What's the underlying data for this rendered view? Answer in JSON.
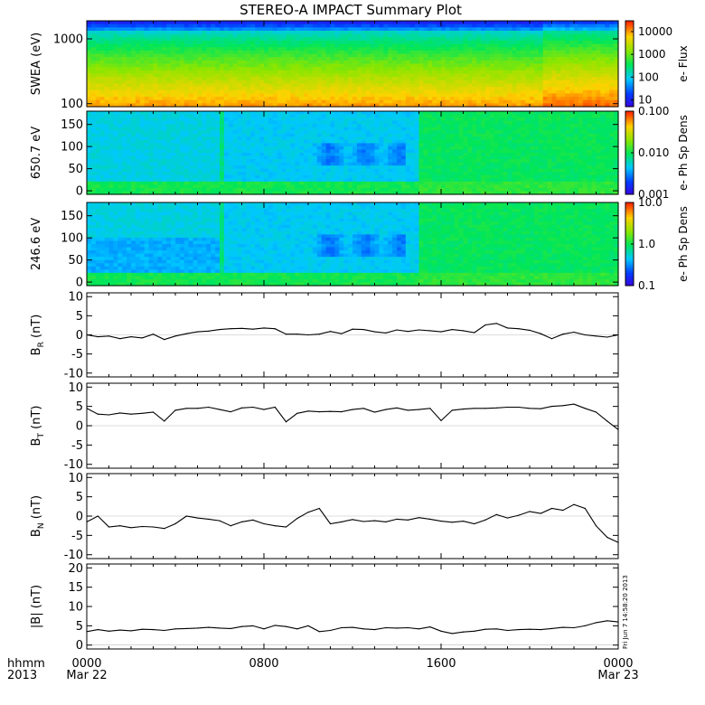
{
  "figure_title": "STEREO-A IMPACT Summary Plot",
  "timestamp_note": "Fri Jun  7 14:58:20 2013",
  "time_axis": {
    "corner_label": [
      "hhmm",
      "2013"
    ],
    "ticks": [
      {
        "hours": 0,
        "label": "0000",
        "date": "Mar 22"
      },
      {
        "hours": 8,
        "label": "0800",
        "date": ""
      },
      {
        "hours": 16,
        "label": "1600",
        "date": ""
      },
      {
        "hours": 24,
        "label": "0000",
        "date": "Mar 23"
      }
    ],
    "range_hours": [
      0,
      24
    ]
  },
  "chart_data": [
    {
      "type": "heatmap",
      "ylabel": "SWEA (eV)",
      "y_scale": "log",
      "ylim": [
        90,
        1900
      ],
      "y_ticks": [
        {
          "v": 1000,
          "label": "1000"
        },
        {
          "v": 100,
          "label": "100"
        }
      ],
      "colorbar": {
        "label": "e- Flux",
        "scale": "log",
        "range": [
          5,
          30000
        ],
        "ticks": [
          {
            "v": 10000,
            "label": "10000"
          },
          {
            "v": 1000,
            "label": "1000"
          },
          {
            "v": 100,
            "label": "100"
          },
          {
            "v": 10,
            "label": "10"
          }
        ]
      },
      "colormap": "rainbow"
    },
    {
      "type": "heatmap",
      "ylabel": "650.7 eV",
      "ylim": [
        -8,
        180
      ],
      "y_ticks": [
        {
          "v": 150,
          "label": "150"
        },
        {
          "v": 100,
          "label": "100"
        },
        {
          "v": 50,
          "label": "50"
        },
        {
          "v": 0,
          "label": "0"
        }
      ],
      "colorbar": {
        "label": "e- Ph Sp Dens",
        "scale": "log",
        "range": [
          0.001,
          0.1
        ],
        "ticks": [
          {
            "v": 0.1,
            "label": "0.100"
          },
          {
            "v": 0.01,
            "label": "0.010"
          },
          {
            "v": 0.001,
            "label": "0.001"
          }
        ]
      },
      "colormap": "rainbow"
    },
    {
      "type": "heatmap",
      "ylabel": "246.6 eV",
      "ylim": [
        -8,
        180
      ],
      "y_ticks": [
        {
          "v": 150,
          "label": "150"
        },
        {
          "v": 100,
          "label": "100"
        },
        {
          "v": 50,
          "label": "50"
        },
        {
          "v": 0,
          "label": "0"
        }
      ],
      "colorbar": {
        "label": "e- Ph Sp Dens",
        "scale": "log",
        "range": [
          0.1,
          10
        ],
        "ticks": [
          {
            "v": 10,
            "label": "10.0"
          },
          {
            "v": 1,
            "label": "1.0"
          },
          {
            "v": 0.1,
            "label": "0.1"
          }
        ]
      },
      "colormap": "rainbow"
    },
    {
      "type": "line",
      "ylabel": "B",
      "ylabel_sub": "R",
      "ylabel_unit": "(nT)",
      "ylim": [
        -11,
        11
      ],
      "y_ticks": [
        10,
        5,
        0,
        -5,
        -10
      ],
      "x": [
        0,
        0.5,
        1,
        1.5,
        2,
        2.5,
        3,
        3.5,
        4,
        4.5,
        5,
        5.5,
        6,
        6.5,
        7,
        7.5,
        8,
        8.5,
        9,
        9.5,
        10,
        10.5,
        11,
        11.5,
        12,
        12.5,
        13,
        13.5,
        14,
        14.5,
        15,
        15.5,
        16,
        16.5,
        17,
        17.5,
        18,
        18.5,
        19,
        19.5,
        20,
        20.5,
        21,
        21.5,
        22,
        22.5,
        23,
        23.5,
        24
      ],
      "y": [
        0,
        -0.5,
        -0.3,
        -1,
        -0.5,
        -0.8,
        0.2,
        -1.2,
        -0.3,
        0.3,
        0.8,
        1,
        1.4,
        1.6,
        1.7,
        1.5,
        1.8,
        1.6,
        0.2,
        0.2,
        0,
        0.2,
        0.9,
        0.3,
        1.5,
        1.4,
        0.8,
        0.5,
        1.3,
        0.9,
        1.3,
        1.1,
        0.8,
        1.4,
        1.1,
        0.6,
        2.6,
        3.0,
        1.8,
        1.6,
        1.2,
        0.3,
        -1.0,
        0.2,
        0.7,
        0,
        -0.3,
        -0.6,
        0
      ]
    },
    {
      "type": "line",
      "ylabel": "B",
      "ylabel_sub": "T",
      "ylabel_unit": "(nT)",
      "ylim": [
        -11,
        11
      ],
      "y_ticks": [
        10,
        5,
        0,
        -5,
        -10
      ],
      "x": [
        0,
        0.5,
        1,
        1.5,
        2,
        2.5,
        3,
        3.5,
        4,
        4.5,
        5,
        5.5,
        6,
        6.5,
        7,
        7.5,
        8,
        8.5,
        9,
        9.5,
        10,
        10.5,
        11,
        11.5,
        12,
        12.5,
        13,
        13.5,
        14,
        14.5,
        15,
        15.5,
        16,
        16.5,
        17,
        17.5,
        18,
        18.5,
        19,
        19.5,
        20,
        20.5,
        21,
        21.5,
        22,
        22.5,
        23,
        23.5,
        24
      ],
      "y": [
        4.5,
        3,
        2.8,
        3.3,
        3,
        3.2,
        3.5,
        1.2,
        4,
        4.5,
        4.5,
        4.8,
        4.2,
        3.6,
        4.6,
        4.8,
        4.2,
        4.8,
        1.0,
        3.2,
        3.8,
        3.6,
        3.7,
        3.6,
        4.2,
        4.5,
        3.5,
        4.2,
        4.6,
        4.0,
        4.2,
        4.5,
        1.3,
        4.0,
        4.3,
        4.5,
        4.5,
        4.6,
        4.8,
        4.8,
        4.5,
        4.4,
        5.0,
        5.2,
        5.6,
        4.5,
        3.5,
        1.2,
        -1.0
      ]
    },
    {
      "type": "line",
      "ylabel": "B",
      "ylabel_sub": "N",
      "ylabel_unit": "(nT)",
      "ylim": [
        -11,
        11
      ],
      "y_ticks": [
        10,
        5,
        0,
        -5,
        -10
      ],
      "x": [
        0,
        0.5,
        1,
        1.5,
        2,
        2.5,
        3,
        3.5,
        4,
        4.5,
        5,
        5.5,
        6,
        6.5,
        7,
        7.5,
        8,
        8.5,
        9,
        9.5,
        10,
        10.5,
        11,
        11.5,
        12,
        12.5,
        13,
        13.5,
        14,
        14.5,
        15,
        15.5,
        16,
        16.5,
        17,
        17.5,
        18,
        18.5,
        19,
        19.5,
        20,
        20.5,
        21,
        21.5,
        22,
        22.5,
        23,
        23.5,
        24
      ],
      "y": [
        -1.5,
        0,
        -2.8,
        -2.5,
        -3,
        -2.7,
        -2.8,
        -3.2,
        -2.0,
        0,
        -0.5,
        -0.8,
        -1.2,
        -2.5,
        -1.5,
        -1.0,
        -2.0,
        -2.5,
        -2.8,
        -0.6,
        1.0,
        2.0,
        -2.0,
        -1.5,
        -0.9,
        -1.4,
        -1.2,
        -1.5,
        -0.8,
        -1.0,
        -0.4,
        -0.8,
        -1.3,
        -1.6,
        -1.3,
        -2.0,
        -1.0,
        0.4,
        -0.5,
        0.2,
        1.2,
        0.7,
        2.0,
        1.5,
        3.0,
        2.0,
        -2.5,
        -5.5,
        -6.8
      ]
    },
    {
      "type": "line",
      "ylabel": "|B|",
      "ylabel_sub": "",
      "ylabel_unit": "(nT)",
      "ylim": [
        -1,
        21
      ],
      "y_ticks": [
        20,
        15,
        10,
        5,
        0
      ],
      "x": [
        0,
        0.5,
        1,
        1.5,
        2,
        2.5,
        3,
        3.5,
        4,
        4.5,
        5,
        5.5,
        6,
        6.5,
        7,
        7.5,
        8,
        8.5,
        9,
        9.5,
        10,
        10.5,
        11,
        11.5,
        12,
        12.5,
        13,
        13.5,
        14,
        14.5,
        15,
        15.5,
        16,
        16.5,
        17,
        17.5,
        18,
        18.5,
        19,
        19.5,
        20,
        20.5,
        21,
        21.5,
        22,
        22.5,
        23,
        23.5,
        24
      ],
      "y": [
        3.5,
        4.0,
        3.6,
        3.9,
        3.7,
        4.1,
        4.0,
        3.8,
        4.2,
        4.3,
        4.4,
        4.6,
        4.4,
        4.3,
        4.8,
        5.0,
        4.2,
        5.1,
        4.8,
        4.2,
        5.0,
        3.5,
        3.8,
        4.5,
        4.6,
        4.2,
        4.0,
        4.5,
        4.4,
        4.5,
        4.2,
        4.7,
        3.6,
        3.0,
        3.4,
        3.6,
        4.1,
        4.2,
        3.8,
        4.0,
        4.1,
        4.0,
        4.3,
        4.6,
        4.5,
        5.0,
        5.8,
        6.3,
        6.0
      ]
    }
  ]
}
